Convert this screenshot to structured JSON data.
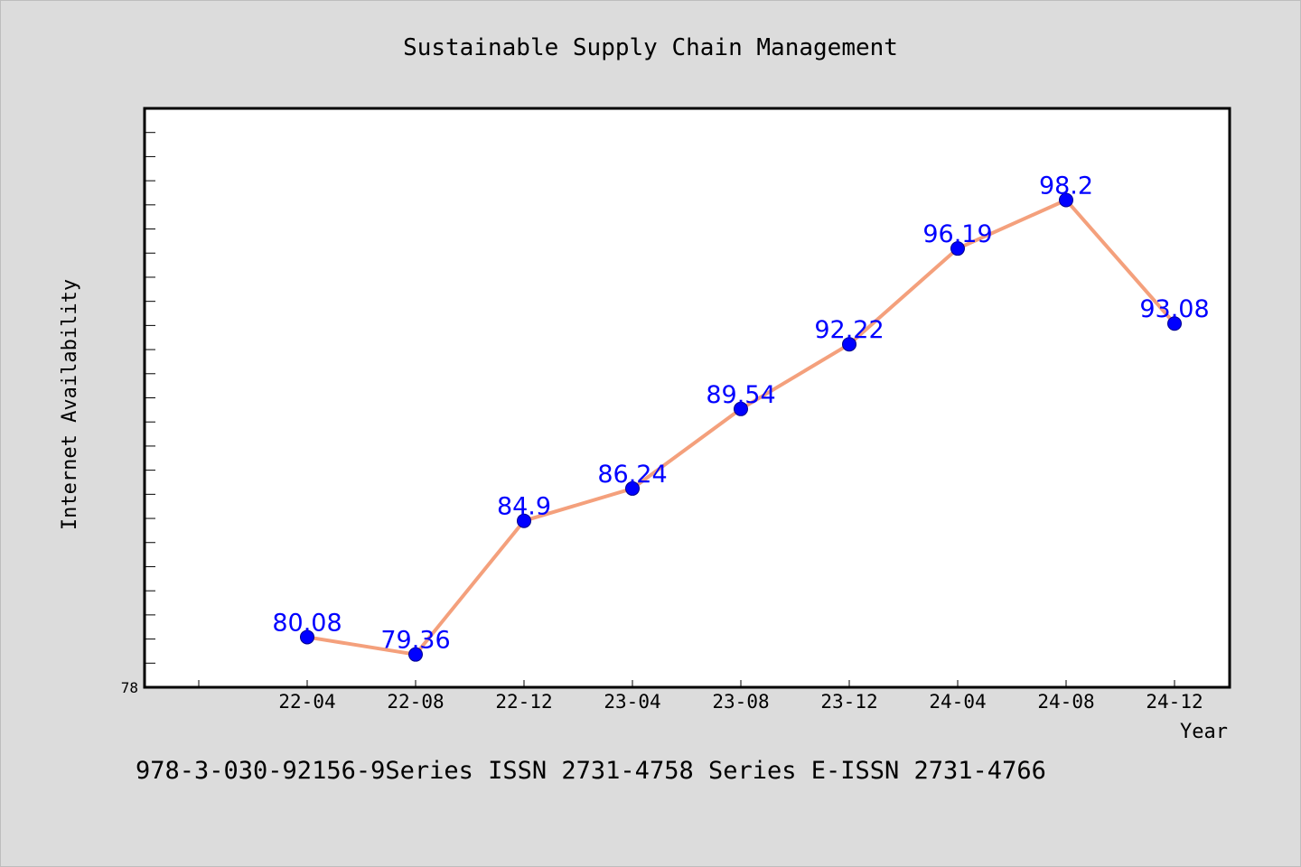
{
  "chart_data": {
    "type": "line",
    "title": "Sustainable Supply Chain Management",
    "xlabel": "Year",
    "ylabel": "Internet Availability",
    "categories": [
      "22-04",
      "22-08",
      "22-12",
      "23-04",
      "23-08",
      "23-12",
      "24-04",
      "24-08",
      "24-12"
    ],
    "series": [
      {
        "values": [
          80.08,
          79.36,
          84.9,
          86.24,
          89.54,
          92.22,
          96.19,
          98.2,
          93.08
        ],
        "line_color": "#f4a07c",
        "marker_color": "#0000ff",
        "label_color": "#0000ff"
      }
    ],
    "y_tick_labels": [
      "78"
    ],
    "ylim": [
      78,
      102
    ],
    "grid": false,
    "legend": "none"
  },
  "footer": {
    "text": "978-3-030-92156-9Series ISSN 2731-4758 Series E-ISSN 2731-4766"
  },
  "colors": {
    "background": "#dcdcdc",
    "plot_background": "#ffffff",
    "axis": "#000000"
  }
}
